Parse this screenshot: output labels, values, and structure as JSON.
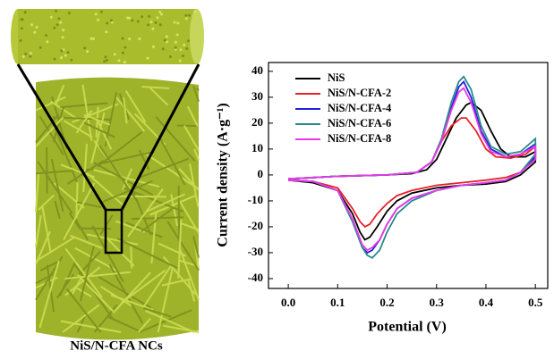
{
  "chart_data": {
    "type": "line",
    "caption": "NiS/N-CFA NCs",
    "x_label": "Potential (V)",
    "y_label": "Current density (A·g⁻¹)",
    "xlim": [
      -0.04,
      0.525
    ],
    "ylim": [
      -43.8,
      43.4
    ],
    "xticks": [
      {
        "value": 0,
        "label": "0.0"
      },
      0.1,
      0.2,
      0.3,
      0.4,
      0.5
    ],
    "yticks": [
      -40,
      -30,
      -20,
      -10,
      0,
      10,
      20,
      30,
      40
    ],
    "legend": "upper left",
    "series": [
      {
        "name": "NiS",
        "color": "#000000",
        "x": [
          0,
          0.1,
          0.2,
          0.25,
          0.28,
          0.3,
          0.32,
          0.34,
          0.36,
          0.37,
          0.39,
          0.41,
          0.43,
          0.45,
          0.48,
          0.5,
          0.5,
          0.47,
          0.44,
          0.4,
          0.35,
          0.3,
          0.25,
          0.22,
          0.2,
          0.18,
          0.165,
          0.155,
          0.145,
          0.13,
          0.1,
          0.05,
          0
        ],
        "values": [
          -1.5,
          -0.5,
          0,
          0.5,
          2,
          6,
          14,
          22,
          27,
          28,
          25,
          17,
          10,
          7,
          7,
          9,
          5,
          0,
          -2.5,
          -3.5,
          -4,
          -5,
          -7,
          -10,
          -14,
          -20,
          -24,
          -25,
          -22,
          -15,
          -6,
          -3,
          -2
        ]
      },
      {
        "name": "NiS/N-CFA-2",
        "color": "#e8202a",
        "x": [
          0,
          0.1,
          0.2,
          0.26,
          0.29,
          0.31,
          0.33,
          0.35,
          0.36,
          0.38,
          0.4,
          0.42,
          0.45,
          0.48,
          0.5,
          0.5,
          0.47,
          0.44,
          0.4,
          0.35,
          0.3,
          0.25,
          0.22,
          0.2,
          0.18,
          0.165,
          0.155,
          0.145,
          0.13,
          0.1,
          0.05,
          0
        ],
        "values": [
          -1.5,
          -0.5,
          0,
          1,
          5,
          13,
          19,
          22,
          22,
          17,
          10,
          7,
          6.5,
          8,
          11,
          6,
          1,
          -1,
          -2,
          -3,
          -4,
          -6,
          -8,
          -11,
          -15,
          -19,
          -20,
          -18,
          -13,
          -5,
          -2.5,
          -2
        ]
      },
      {
        "name": "NiS/N-CFA-4",
        "color": "#2020e0",
        "x": [
          0,
          0.1,
          0.2,
          0.26,
          0.29,
          0.31,
          0.33,
          0.345,
          0.355,
          0.37,
          0.39,
          0.41,
          0.44,
          0.47,
          0.5,
          0.5,
          0.47,
          0.44,
          0.4,
          0.35,
          0.3,
          0.25,
          0.22,
          0.2,
          0.185,
          0.17,
          0.16,
          0.15,
          0.13,
          0.1,
          0.05,
          0
        ],
        "values": [
          -1.5,
          -0.5,
          0,
          1,
          5,
          13,
          26,
          34,
          36,
          30,
          17,
          10,
          7,
          8,
          12,
          7,
          1,
          -2,
          -3,
          -4,
          -6,
          -9,
          -13,
          -19,
          -25,
          -29,
          -30,
          -28,
          -18,
          -6,
          -2.5,
          -2
        ]
      },
      {
        "name": "NiS/N-CFA-6",
        "color": "#2a8a8a",
        "x": [
          0,
          0.1,
          0.2,
          0.26,
          0.29,
          0.31,
          0.33,
          0.345,
          0.355,
          0.37,
          0.39,
          0.41,
          0.44,
          0.47,
          0.5,
          0.5,
          0.47,
          0.44,
          0.4,
          0.35,
          0.3,
          0.25,
          0.22,
          0.2,
          0.185,
          0.17,
          0.16,
          0.15,
          0.13,
          0.1,
          0.05,
          0
        ],
        "values": [
          -1.5,
          -0.5,
          0,
          1,
          5,
          14,
          28,
          36,
          38,
          33,
          19,
          11,
          8,
          9,
          14,
          8,
          1,
          -2,
          -3,
          -4,
          -6,
          -10,
          -15,
          -22,
          -29,
          -32,
          -31,
          -28,
          -18,
          -6,
          -2.5,
          -2
        ]
      },
      {
        "name": "NiS/N-CFA-8",
        "color": "#e83ae8",
        "x": [
          0,
          0.1,
          0.2,
          0.26,
          0.29,
          0.31,
          0.33,
          0.345,
          0.355,
          0.37,
          0.39,
          0.41,
          0.44,
          0.47,
          0.5,
          0.5,
          0.47,
          0.44,
          0.4,
          0.35,
          0.3,
          0.25,
          0.22,
          0.2,
          0.185,
          0.17,
          0.16,
          0.15,
          0.13,
          0.1,
          0.05,
          0
        ],
        "values": [
          -1.5,
          -0.5,
          0,
          1,
          5,
          13,
          25,
          32,
          33.5,
          28,
          16,
          9,
          7,
          8,
          11,
          6,
          1,
          -2,
          -3,
          -4,
          -6,
          -9,
          -13,
          -19,
          -25,
          -28,
          -29,
          -27,
          -17,
          -6,
          -2.5,
          -2
        ]
      }
    ]
  }
}
